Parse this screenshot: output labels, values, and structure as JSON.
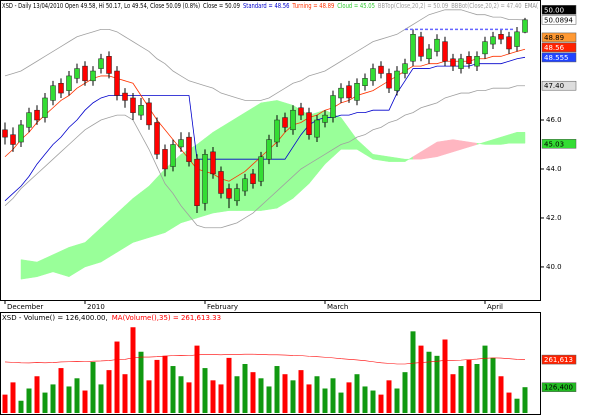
{
  "chart_data": [
    {
      "type": "candlestick",
      "title": "XSD - Daily 13/04/2010 Open 49.58, Hi 50.17, Lo 49.54, Close 50.09 (0.8%)",
      "name": "Close = 50.09",
      "name_color": "#000000",
      "legend_tail": "EMA(",
      "categories": [
        "December",
        null,
        null,
        null,
        null,
        null,
        null,
        null,
        null,
        null,
        "2010",
        null,
        null,
        null,
        null,
        null,
        null,
        null,
        null,
        null,
        null,
        null,
        null,
        null,
        null,
        "February",
        null,
        null,
        null,
        null,
        null,
        null,
        null,
        null,
        null,
        null,
        null,
        null,
        null,
        null,
        "March",
        null,
        null,
        null,
        null,
        null,
        null,
        null,
        null,
        null,
        null,
        null,
        null,
        null,
        null,
        null,
        null,
        null,
        null,
        null,
        "April",
        null,
        null,
        null,
        null,
        null
      ],
      "open": [
        45.6,
        45.4,
        45.1,
        45.7,
        46.4,
        46.1,
        46.8,
        47.5,
        47.2,
        47.7,
        48.2,
        47.6,
        48.1,
        48.6,
        48.0,
        47.1,
        46.9,
        46.2,
        46.7,
        45.9,
        44.8,
        44.1,
        44.9,
        45.3,
        44.4,
        42.6,
        44.7,
        43.9,
        43.2,
        42.7,
        43.1,
        43.8,
        43.5,
        44.4,
        45.1,
        46.1,
        45.6,
        46.5,
        46.3,
        45.3,
        45.9,
        46.1,
        46.9,
        47.4,
        46.8,
        47.4,
        47.6,
        48.2,
        47.9,
        47.2,
        47.9,
        48.4,
        49.4,
        48.5,
        48.8,
        49.2,
        48.5,
        48.1,
        48.6,
        48.2,
        48.7,
        49.1,
        49.5,
        49.4,
        49.0,
        49.58
      ],
      "high": [
        45.9,
        45.7,
        46.0,
        46.5,
        46.6,
        47.1,
        47.6,
        47.7,
        48.0,
        48.3,
        48.4,
        48.2,
        48.7,
        48.8,
        48.2,
        47.3,
        47.1,
        46.9,
        46.9,
        46.1,
        45.0,
        45.2,
        45.5,
        45.5,
        44.6,
        44.8,
        44.9,
        44.1,
        43.4,
        43.4,
        43.8,
        44.0,
        44.7,
        45.4,
        46.2,
        46.3,
        46.6,
        46.7,
        46.5,
        46.2,
        46.4,
        47.2,
        47.5,
        47.6,
        47.7,
        47.9,
        48.3,
        48.4,
        48.1,
        48.2,
        48.5,
        49.7,
        49.6,
        49.1,
        49.5,
        49.4,
        48.7,
        48.7,
        48.8,
        48.8,
        49.4,
        49.6,
        49.7,
        49.6,
        49.8,
        50.17
      ],
      "low": [
        45.0,
        44.7,
        44.9,
        45.5,
        45.8,
        45.9,
        46.6,
        46.9,
        47.0,
        47.5,
        47.4,
        47.4,
        47.9,
        47.7,
        46.8,
        46.5,
        46.0,
        46.0,
        45.6,
        44.4,
        43.7,
        43.9,
        44.7,
        44.1,
        42.2,
        42.3,
        43.6,
        42.8,
        42.4,
        42.5,
        42.9,
        43.2,
        43.3,
        44.2,
        44.9,
        45.5,
        45.4,
        46.0,
        45.2,
        45.1,
        45.7,
        45.9,
        46.7,
        46.7,
        46.6,
        47.2,
        47.4,
        47.7,
        47.1,
        47.0,
        47.7,
        48.2,
        48.4,
        48.3,
        48.6,
        48.2,
        48.0,
        47.9,
        48.1,
        48.0,
        48.5,
        48.9,
        49.1,
        48.7,
        48.8,
        49.54
      ],
      "close": [
        45.3,
        45.0,
        45.8,
        46.3,
        46.0,
        46.9,
        47.4,
        47.1,
        47.8,
        48.1,
        47.6,
        48.0,
        48.5,
        47.9,
        47.0,
        46.8,
        46.3,
        46.6,
        45.8,
        44.6,
        44.0,
        45.0,
        45.2,
        44.3,
        42.5,
        44.6,
        43.8,
        43.0,
        42.8,
        43.2,
        43.6,
        43.4,
        44.5,
        45.2,
        46.0,
        45.7,
        46.4,
        46.2,
        45.4,
        46.0,
        46.2,
        47.0,
        47.3,
        46.9,
        47.5,
        47.7,
        48.1,
        47.9,
        47.3,
        48.0,
        48.3,
        49.5,
        48.6,
        48.9,
        49.3,
        48.4,
        48.2,
        48.5,
        48.3,
        48.6,
        49.2,
        49.4,
        49.3,
        48.9,
        49.6,
        50.09
      ],
      "up_color": "#33dd33",
      "down_color": "#ff0000",
      "series": [
        {
          "name": "BBTop(Close,20,2) = 50.09",
          "color": "#a0a0a0",
          "values": [
            47.8,
            47.9,
            48.0,
            48.2,
            48.4,
            48.6,
            48.8,
            49.0,
            49.2,
            49.4,
            49.5,
            49.6,
            49.7,
            49.7,
            49.6,
            49.4,
            49.2,
            49.0,
            48.8,
            48.5,
            48.3,
            48.0,
            47.8,
            47.6,
            47.5,
            47.4,
            47.3,
            47.1,
            47.0,
            46.9,
            46.8,
            46.8,
            46.8,
            46.9,
            47.1,
            47.3,
            47.5,
            47.6,
            47.8,
            47.9,
            48.0,
            48.2,
            48.4,
            48.6,
            48.8,
            49.0,
            49.2,
            49.3,
            49.4,
            49.5,
            49.7,
            49.9,
            50.1,
            50.3,
            50.4,
            50.5,
            50.5,
            50.5,
            50.4,
            50.3,
            50.3,
            50.2,
            50.2,
            50.1,
            50.1,
            50.09
          ]
        },
        {
          "name": "BBBot(Close,20,2) = 47.40",
          "color": "#a0a0a0",
          "values": [
            42.5,
            42.8,
            43.2,
            43.5,
            43.8,
            44.1,
            44.4,
            44.7,
            45.0,
            45.3,
            45.6,
            45.8,
            46.0,
            46.1,
            46.2,
            46.2,
            46.0,
            45.4,
            44.8,
            44.1,
            43.4,
            43.0,
            42.5,
            42.1,
            41.7,
            41.6,
            41.6,
            41.6,
            41.7,
            41.8,
            42.0,
            42.2,
            42.5,
            42.8,
            43.1,
            43.4,
            43.7,
            44.0,
            44.2,
            44.4,
            44.6,
            44.8,
            45.0,
            45.1,
            45.3,
            45.4,
            45.6,
            45.7,
            45.9,
            46.0,
            46.2,
            46.3,
            46.5,
            46.6,
            46.7,
            46.9,
            47.0,
            47.1,
            47.1,
            47.2,
            47.2,
            47.3,
            47.3,
            47.3,
            47.4,
            47.4
          ]
        },
        {
          "name": "Standard = 48.56",
          "color": "#0000cc",
          "values": [
            42.7,
            43.0,
            43.3,
            43.7,
            44.2,
            44.6,
            45.0,
            45.3,
            45.7,
            46.0,
            46.4,
            46.7,
            46.9,
            47.0,
            47.0,
            47.0,
            47.0,
            47.0,
            47.0,
            47.0,
            47.0,
            47.0,
            47.0,
            47.0,
            44.4,
            44.4,
            44.4,
            44.4,
            44.4,
            44.4,
            44.4,
            44.4,
            44.4,
            44.4,
            44.4,
            44.4,
            44.9,
            45.4,
            45.8,
            46.0,
            46.1,
            46.1,
            46.2,
            46.2,
            46.3,
            46.3,
            46.4,
            46.4,
            46.4,
            47.1,
            47.6,
            48.1,
            48.1,
            48.1,
            48.2,
            48.2,
            48.2,
            48.2,
            48.2,
            48.3,
            48.3,
            48.3,
            48.3,
            48.4,
            48.5,
            48.56
          ]
        },
        {
          "name": "Turning = 48.89",
          "color": "#ff3300",
          "values": [
            44.5,
            44.8,
            45.2,
            45.5,
            45.9,
            46.2,
            46.5,
            46.8,
            47.0,
            47.3,
            47.5,
            47.7,
            47.8,
            47.8,
            47.7,
            47.6,
            47.5,
            47.0,
            46.5,
            46.0,
            45.6,
            45.2,
            44.8,
            44.4,
            44.0,
            43.9,
            43.8,
            43.6,
            43.5,
            43.7,
            43.9,
            44.2,
            44.5,
            44.8,
            45.1,
            45.5,
            45.8,
            45.9,
            46.1,
            46.2,
            46.4,
            46.5,
            46.7,
            46.8,
            47.0,
            47.1,
            47.2,
            47.4,
            47.6,
            47.8,
            48.0,
            48.2,
            48.2,
            48.3,
            48.3,
            48.4,
            48.4,
            48.4,
            48.4,
            48.5,
            48.5,
            48.6,
            48.6,
            48.7,
            48.8,
            48.89
          ]
        }
      ],
      "cloud": {
        "name": "Cloud = 45.05",
        "color": "#99ff99",
        "down_color": "#ffb6c1",
        "legend_color": "#33cc33",
        "span_a": [
          null,
          null,
          40.3,
          40.25,
          40.2,
          40.35,
          40.5,
          40.65,
          40.8,
          40.9,
          41.0,
          41.3,
          41.6,
          41.9,
          42.2,
          42.5,
          42.8,
          43.05,
          43.3,
          43.65,
          44.0,
          44.3,
          44.6,
          44.8,
          45.0,
          45.25,
          45.5,
          45.7,
          45.9,
          46.1,
          46.3,
          46.5,
          46.7,
          46.75,
          46.8,
          46.7,
          46.6,
          46.4,
          46.2,
          46.3,
          46.4,
          46.25,
          46.1,
          45.65,
          45.2,
          44.9,
          44.6,
          44.55,
          44.5,
          44.45,
          44.4,
          44.4,
          44.4,
          44.45,
          44.5,
          44.6,
          44.7,
          44.8,
          44.9,
          45.0,
          45.1,
          45.2,
          45.3,
          45.4,
          45.5,
          45.5
        ],
        "span_b": [
          null,
          null,
          39.5,
          39.55,
          39.6,
          39.7,
          39.8,
          39.7,
          39.6,
          39.8,
          40.0,
          40.1,
          40.2,
          40.4,
          40.6,
          40.8,
          41.0,
          41.1,
          41.2,
          41.3,
          41.4,
          41.6,
          41.8,
          41.9,
          42.0,
          42.1,
          42.2,
          42.25,
          42.3,
          42.3,
          42.3,
          42.3,
          42.3,
          42.35,
          42.4,
          42.6,
          42.8,
          43.1,
          43.4,
          43.8,
          44.2,
          44.5,
          44.8,
          44.8,
          44.8,
          44.6,
          44.4,
          44.35,
          44.3,
          44.3,
          44.3,
          44.5,
          44.7,
          44.9,
          45.1,
          45.15,
          45.2,
          45.15,
          45.1,
          45.05,
          45.0,
          45.0,
          45.0,
          45.05,
          45.05,
          45.05
        ]
      },
      "hline": {
        "value": 49.7,
        "color": "#6666ff"
      },
      "ylim": [
        38.65,
        50.9
      ],
      "yticks": [
        {
          "value": 40,
          "label": "40.0"
        },
        {
          "value": 42,
          "label": "42.0"
        },
        {
          "value": 44,
          "label": "44.0"
        },
        {
          "value": 46,
          "label": "46.0"
        }
      ],
      "value_tags": [
        {
          "value": 50.0,
          "label": "50.00",
          "color": "#000000",
          "text_color": "#ffffff"
        },
        {
          "value": 50.0894,
          "label": "50.0894",
          "color": "#ffffff",
          "text_color": "#000000"
        },
        {
          "value": 48.89,
          "label": "48.89",
          "color": "#ff9933",
          "text_color": "#000000"
        },
        {
          "value": 48.56,
          "label": "48.56",
          "color": "#ff2200",
          "text_color": "#ffffff"
        },
        {
          "value": 48.555,
          "label": "48.555",
          "color": "#2244ff",
          "text_color": "#ffffff"
        },
        {
          "value": 47.4,
          "label": "47.40",
          "color": "#dddddd",
          "text_color": "#000000"
        },
        {
          "value": 45.03,
          "label": "45.03",
          "color": "#33dd33",
          "text_color": "#000000"
        }
      ]
    },
    {
      "type": "bar",
      "title": "XSD - Volume() = 126,400.00,",
      "values": [
        90000,
        150000,
        60000,
        120000,
        180000,
        100000,
        140000,
        220000,
        130000,
        170000,
        110000,
        250000,
        140000,
        210000,
        350000,
        190000,
        420000,
        300000,
        160000,
        260000,
        280000,
        230000,
        180000,
        150000,
        330000,
        220000,
        160000,
        140000,
        270000,
        180000,
        240000,
        200000,
        170000,
        130000,
        230000,
        190000,
        160000,
        210000,
        140000,
        180000,
        120000,
        170000,
        100000,
        150000,
        190000,
        130000,
        110000,
        90000,
        160000,
        120000,
        200000,
        400000,
        330000,
        300000,
        280000,
        360000,
        190000,
        230000,
        260000,
        240000,
        330000,
        270000,
        180000,
        100000,
        70000,
        126400
      ],
      "up_color": "#119911",
      "down_color": "#ff0000",
      "series": [
        {
          "name": "MA(Volume(),35) = 261,613.33",
          "color": "#ff0000",
          "values": [
            250000,
            248000,
            246000,
            245000,
            247000,
            246000,
            247000,
            250000,
            251000,
            252000,
            251000,
            254000,
            255000,
            257000,
            262000,
            263000,
            270000,
            274000,
            274000,
            276000,
            279000,
            281000,
            282000,
            281000,
            285000,
            286000,
            286000,
            285000,
            287000,
            287000,
            288000,
            288000,
            287000,
            285000,
            285000,
            284000,
            282000,
            281000,
            278000,
            276000,
            273000,
            270000,
            266000,
            263000,
            260000,
            256000,
            251000,
            246000,
            243000,
            240000,
            240000,
            244000,
            247000,
            250000,
            253000,
            258000,
            258000,
            259000,
            262000,
            264000,
            268000,
            270000,
            269000,
            266000,
            263000,
            261613.33
          ]
        }
      ],
      "ylim": [
        0,
        480000
      ],
      "value_tags": [
        {
          "value": 261613,
          "label": "261,613",
          "color": "#ff2200",
          "text_color": "#ffffff"
        },
        {
          "value": 126400,
          "label": "126,400",
          "color": "#22bb22",
          "text_color": "#000000"
        }
      ]
    }
  ]
}
